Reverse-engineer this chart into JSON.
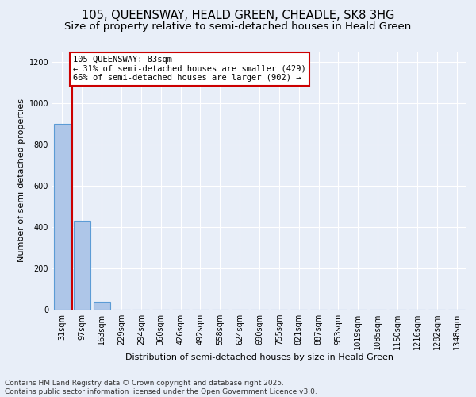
{
  "title_line1": "105, QUEENSWAY, HEALD GREEN, CHEADLE, SK8 3HG",
  "title_line2": "Size of property relative to semi-detached houses in Heald Green",
  "xlabel": "Distribution of semi-detached houses by size in Heald Green",
  "ylabel": "Number of semi-detached properties",
  "categories": [
    "31sqm",
    "97sqm",
    "163sqm",
    "229sqm",
    "294sqm",
    "360sqm",
    "426sqm",
    "492sqm",
    "558sqm",
    "624sqm",
    "690sqm",
    "755sqm",
    "821sqm",
    "887sqm",
    "953sqm",
    "1019sqm",
    "1085sqm",
    "1150sqm",
    "1216sqm",
    "1282sqm",
    "1348sqm"
  ],
  "values": [
    900,
    429,
    40,
    0,
    0,
    0,
    0,
    0,
    0,
    0,
    0,
    0,
    0,
    0,
    0,
    0,
    0,
    0,
    0,
    0,
    0
  ],
  "bar_color": "#aec6e8",
  "bar_edge_color": "#5b9bd5",
  "vline_x": 0.5,
  "annotation_title": "105 QUEENSWAY: 83sqm",
  "annotation_line1": "← 31% of semi-detached houses are smaller (429)",
  "annotation_line2": "66% of semi-detached houses are larger (902) →",
  "annotation_box_facecolor": "#ffffff",
  "annotation_box_edgecolor": "#cc0000",
  "vline_color": "#cc0000",
  "ylim": [
    0,
    1250
  ],
  "yticks": [
    0,
    200,
    400,
    600,
    800,
    1000,
    1200
  ],
  "background_color": "#e8eef8",
  "grid_color": "#ffffff",
  "footer_line1": "Contains HM Land Registry data © Crown copyright and database right 2025.",
  "footer_line2": "Contains public sector information licensed under the Open Government Licence v3.0.",
  "title_fontsize": 10.5,
  "subtitle_fontsize": 9.5,
  "label_fontsize": 8,
  "tick_fontsize": 7,
  "annot_fontsize": 7.5,
  "footer_fontsize": 6.5
}
